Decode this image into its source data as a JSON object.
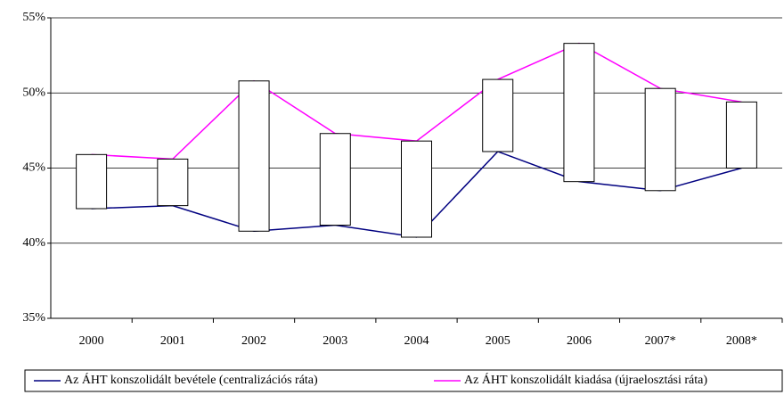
{
  "chart_data": {
    "type": "line",
    "categories": [
      "2000",
      "2001",
      "2002",
      "2003",
      "2004",
      "2005",
      "2006",
      "2007*",
      "2008*"
    ],
    "series": [
      {
        "name": "Az ÁHT konszolidált bevétele (centralizációs ráta)",
        "color": "#000080",
        "values": [
          42.3,
          42.5,
          40.8,
          41.2,
          40.4,
          46.1,
          44.1,
          43.5,
          45.0
        ]
      },
      {
        "name": "Az ÁHT konszolidált kiadása (újraelosztási ráta)",
        "color": "#ff00ff",
        "values": [
          45.9,
          45.6,
          50.8,
          47.3,
          46.8,
          50.9,
          53.3,
          50.3,
          49.4
        ]
      }
    ],
    "ylim": [
      35,
      55
    ],
    "yticks": [
      {
        "value": 35,
        "label": "35%"
      },
      {
        "value": 40,
        "label": "40%"
      },
      {
        "value": 45,
        "label": "45%"
      },
      {
        "value": 50,
        "label": "50%"
      },
      {
        "value": 55,
        "label": "55%"
      }
    ],
    "grid": true,
    "legend": "bottom"
  }
}
